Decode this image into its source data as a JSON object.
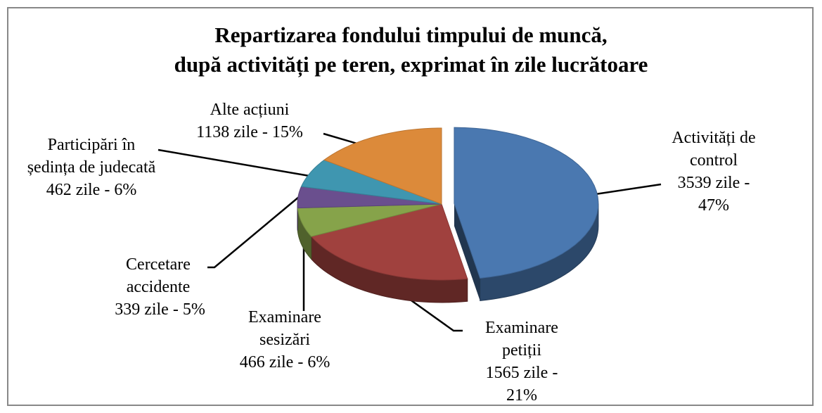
{
  "chart_data": {
    "type": "pie",
    "title": [
      "Repartizarea fondului timpului de muncă,",
      "după activități pe teren, exprimat în zile lucrătoare"
    ],
    "categories": [
      "Activități de control",
      "Examinare petiții",
      "Examinare sesizări",
      "Cercetare accidente",
      "Participări în ședința de judecată",
      "Alte acțiuni"
    ],
    "values": [
      3539,
      1565,
      466,
      339,
      462,
      1138
    ],
    "value_labels": [
      "3539 zile - 47%",
      "1565 zile - 21%",
      "466 zile - 6%",
      "339 zile - 5%",
      "462 zile - 6%",
      "1138 zile - 15%"
    ],
    "colors": [
      "#4a78b0",
      "#a0413e",
      "#86a34a",
      "#6a4f8e",
      "#3f96b0",
      "#dc8a3a"
    ]
  }
}
